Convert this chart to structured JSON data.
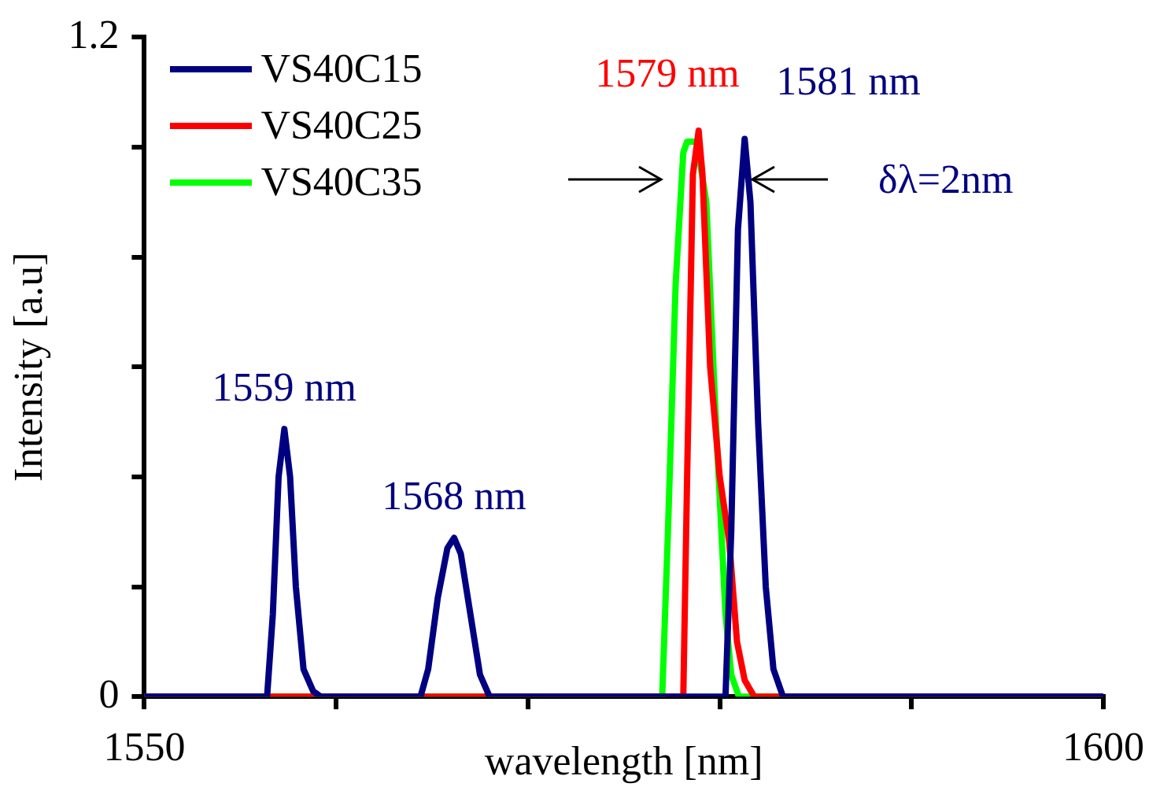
{
  "chart_data": {
    "type": "line",
    "xlabel": "wavelength [nm]",
    "ylabel": "Intensity [a.u]",
    "xlim": [
      1550,
      1600
    ],
    "xticks": [
      1550,
      {
        "value": 1560,
        "label": null
      },
      {
        "value": 1570,
        "label": null
      },
      {
        "value": 1580,
        "label": null
      },
      {
        "value": 1590,
        "label": null
      },
      1600
    ],
    "ylim": [
      0,
      1.2
    ],
    "yticks": [
      0,
      {
        "value": 0.2,
        "label": null
      },
      {
        "value": 0.4,
        "label": null
      },
      {
        "value": 0.6,
        "label": null
      },
      {
        "value": 0.8,
        "label": null
      },
      {
        "value": 1.0,
        "label": null
      },
      1.2
    ],
    "grid": false,
    "legend": "top left",
    "marker": "none",
    "line_style": "solid",
    "series": [
      {
        "name": "VS40C15",
        "color": "#000080",
        "x": [
          1550,
          1556.4,
          1556.7,
          1557.0,
          1557.3,
          1557.6,
          1557.9,
          1558.3,
          1558.8,
          1559.2,
          1564.4,
          1564.8,
          1565.3,
          1565.8,
          1566.15,
          1566.5,
          1567.0,
          1567.5,
          1568.0,
          1580.3,
          1580.6,
          1580.95,
          1581.3,
          1581.6,
          1582.0,
          1582.4,
          1582.8,
          1583.3,
          1600
        ],
        "values": [
          0,
          0,
          0.15,
          0.4,
          0.487,
          0.4,
          0.2,
          0.05,
          0.01,
          0,
          0,
          0.05,
          0.18,
          0.27,
          0.289,
          0.26,
          0.15,
          0.04,
          0,
          0,
          0.3,
          0.85,
          1.015,
          0.9,
          0.5,
          0.2,
          0.05,
          0,
          0
        ]
      },
      {
        "name": "VS40C25",
        "color": "#ff0000",
        "x": [
          1550,
          1578.1,
          1578.3,
          1578.6,
          1578.9,
          1579.1,
          1579.5,
          1580.0,
          1580.5,
          1580.9,
          1581.3,
          1581.8,
          1600
        ],
        "values": [
          0,
          0,
          0.4,
          0.95,
          1.03,
          0.95,
          0.6,
          0.4,
          0.28,
          0.1,
          0.03,
          0,
          0
        ]
      },
      {
        "name": "VS40C35",
        "color": "#00ff00",
        "x": [
          1550,
          1577.0,
          1577.3,
          1577.7,
          1578.1,
          1578.3,
          1578.8,
          1579.3,
          1579.8,
          1580.3,
          1580.6,
          1581.0,
          1600
        ],
        "values": [
          0,
          0,
          0.3,
          0.75,
          0.99,
          1.01,
          1.01,
          0.9,
          0.5,
          0.15,
          0.04,
          0,
          0
        ]
      }
    ],
    "annotations": [
      {
        "text": "1559 nm",
        "x": 1557.3,
        "y": 0.487
      },
      {
        "text": "1568 nm",
        "x": 1566.15,
        "y": 0.289
      },
      {
        "text": "1579 nm",
        "x": 1578.9,
        "y": 1.03
      },
      {
        "text": "1581 nm",
        "x": 1581.3,
        "y": 1.015
      },
      {
        "text": "δλ=2nm",
        "x": 1581.7,
        "y": 0.94
      }
    ]
  }
}
